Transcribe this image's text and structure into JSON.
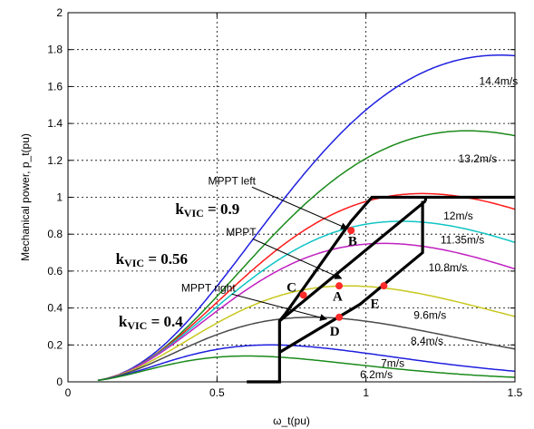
{
  "chart_data": {
    "type": "line",
    "xlabel": "ω_t(pu)",
    "ylabel": "Mechanical power, p_t(pu)",
    "xlim": [
      0,
      1.5
    ],
    "ylim": [
      0,
      2
    ],
    "xticks": [
      "0",
      "0.5",
      "1",
      "1.5"
    ],
    "yticks": [
      "0",
      "0.2",
      "0.4",
      "0.6",
      "0.8",
      "1",
      "1.2",
      "1.4",
      "1.6",
      "1.8",
      "2"
    ],
    "grid": true,
    "series": [
      {
        "name": "14.4m/s",
        "color": "#1f1fe0",
        "peak_w": 1.45,
        "peak_p": 1.77
      },
      {
        "name": "13.2m/s",
        "color": "#1a8a1a",
        "peak_w": 1.34,
        "peak_p": 1.36
      },
      {
        "name": "12m/s",
        "color": "#ff1a1a",
        "peak_w": 1.19,
        "peak_p": 1.02
      },
      {
        "name": "11.35m/s",
        "color": "#10c4c4",
        "peak_w": 1.12,
        "peak_p": 0.87
      },
      {
        "name": "10.8m/s",
        "color": "#c020c0",
        "peak_w": 1.06,
        "peak_p": 0.75
      },
      {
        "name": "9.6m/s",
        "color": "#c8c820",
        "peak_w": 0.94,
        "peak_p": 0.52
      },
      {
        "name": "8.4m/s",
        "color": "#4a4a4a",
        "peak_w": 0.82,
        "peak_p": 0.35
      },
      {
        "name": "7m/s",
        "color": "#1f1fe0",
        "peak_w": 0.68,
        "peak_p": 0.2
      },
      {
        "name": "6.2m/s",
        "color": "#1a8a1a",
        "peak_w": 0.6,
        "peak_p": 0.14
      }
    ],
    "curve_labels": [
      {
        "text": "14.4m/s",
        "x": 1.38,
        "y": 1.63
      },
      {
        "text": "13.2m/s",
        "x": 1.31,
        "y": 1.21
      },
      {
        "text": "12m/s",
        "x": 1.26,
        "y": 0.9
      },
      {
        "text": "11.35m/s",
        "x": 1.25,
        "y": 0.77
      },
      {
        "text": "10.8m/s",
        "x": 1.21,
        "y": 0.62
      },
      {
        "text": "9.6m/s",
        "x": 1.16,
        "y": 0.36
      },
      {
        "text": "8.4m/s",
        "x": 1.15,
        "y": 0.22
      },
      {
        "text": "7m/s",
        "x": 1.05,
        "y": 0.1
      },
      {
        "text": "6.2m/s",
        "x": 0.98,
        "y": 0.04
      }
    ],
    "control_path": [
      [
        0.6,
        0.0
      ],
      [
        0.71,
        0.0
      ],
      [
        0.71,
        0.16
      ],
      [
        0.71,
        0.33
      ],
      [
        0.73,
        0.37
      ],
      [
        0.95,
        0.87
      ],
      [
        1.02,
        1.0
      ],
      [
        1.5,
        1.0
      ]
    ],
    "control_lines": [
      [
        [
          0.71,
          0.16
        ],
        [
          0.98,
          0.42
        ],
        [
          1.19,
          0.7
        ],
        [
          1.19,
          0.98
        ]
      ],
      [
        [
          0.71,
          0.33
        ],
        [
          1.2,
          0.98
        ]
      ],
      [
        [
          1.2,
          0.98
        ],
        [
          1.2,
          1.0
        ]
      ]
    ],
    "points": [
      {
        "label": "A",
        "x": 0.91,
        "y": 0.52,
        "lx": 0.905,
        "ly": 0.44
      },
      {
        "label": "B",
        "x": 0.95,
        "y": 0.82,
        "lx": 0.955,
        "ly": 0.74
      },
      {
        "label": "C",
        "x": 0.79,
        "y": 0.47,
        "lx": 0.75,
        "ly": 0.49
      },
      {
        "label": "D",
        "x": 0.91,
        "y": 0.35,
        "lx": 0.895,
        "ly": 0.25
      },
      {
        "label": "E",
        "x": 1.06,
        "y": 0.52,
        "lx": 1.03,
        "ly": 0.4
      }
    ],
    "annotations": [
      {
        "text": "MPPT left",
        "x": 0.47,
        "y": 1.07,
        "arrow_to": [
          0.95,
          0.82
        ]
      },
      {
        "text": "MPPT",
        "x": 0.53,
        "y": 0.79,
        "arrow_to": [
          0.93,
          0.55
        ]
      },
      {
        "text": "MPPT right",
        "x": 0.38,
        "y": 0.49,
        "arrow_to": [
          0.88,
          0.33
        ]
      }
    ],
    "kvic_labels": [
      {
        "text": "kVIC = 0.9",
        "x": 0.36,
        "y": 0.91
      },
      {
        "text": "kVIC = 0.56",
        "x": 0.16,
        "y": 0.64
      },
      {
        "text": "kVIC = 0.4",
        "x": 0.17,
        "y": 0.3
      }
    ]
  }
}
